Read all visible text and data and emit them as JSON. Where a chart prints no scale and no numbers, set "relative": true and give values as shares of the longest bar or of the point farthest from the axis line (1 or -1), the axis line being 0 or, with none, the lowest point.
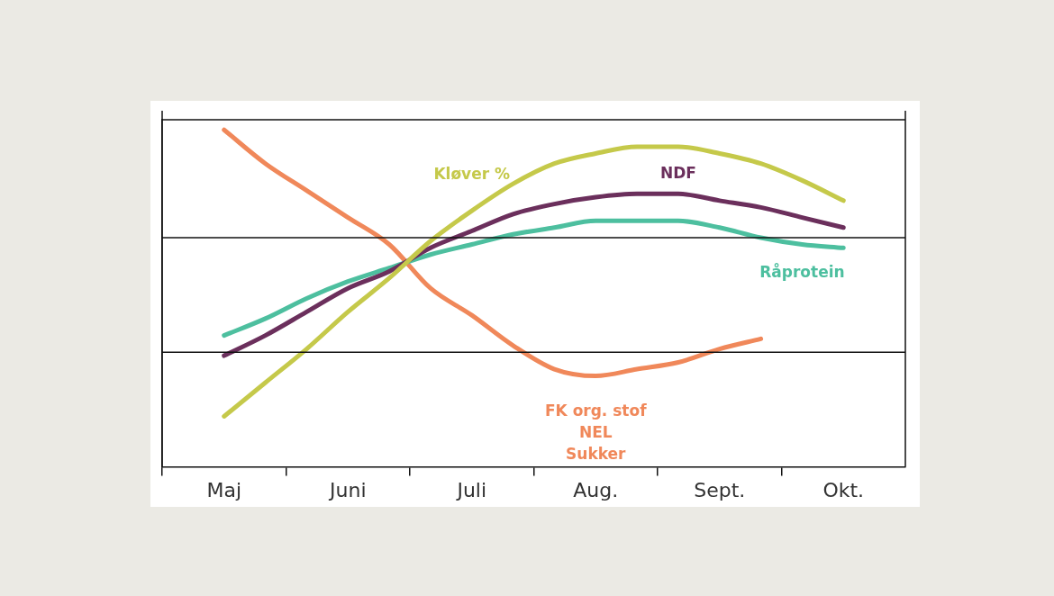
{
  "chart_data": {
    "type": "line",
    "relative": true,
    "ref_lines": [
      {
        "axis": "y",
        "value": 0.34
      },
      {
        "axis": "y",
        "value": 0.68
      },
      {
        "axis": "y",
        "value": 1.03
      }
    ],
    "legend": false,
    "marker": "none",
    "line_style": "solid",
    "categories": [
      null,
      "Maj",
      null,
      null,
      "Juni",
      null,
      null,
      "Juli",
      null,
      null,
      "Aug.",
      null,
      null,
      "Sept.",
      null,
      null,
      "Okt.",
      null
    ],
    "series": [
      {
        "name": "Kløver %",
        "color": "#c5c94a",
        "values": [
          null,
          0.15,
          0.25,
          0.35,
          0.46,
          0.56,
          0.67,
          0.76,
          0.84,
          0.9,
          0.93,
          0.95,
          0.95,
          0.93,
          0.9,
          0.85,
          0.79,
          null
        ]
      },
      {
        "name": "NDF",
        "color": "#6b2f5c",
        "values": [
          null,
          0.33,
          0.39,
          0.46,
          0.53,
          0.58,
          0.65,
          0.7,
          0.75,
          0.78,
          0.8,
          0.81,
          0.81,
          0.79,
          0.77,
          0.74,
          0.71,
          null
        ]
      },
      {
        "name": "Råprotein",
        "color": "#4dbf9f",
        "values": [
          null,
          0.39,
          0.44,
          0.5,
          0.55,
          0.59,
          0.63,
          0.66,
          0.69,
          0.71,
          0.73,
          0.73,
          0.73,
          0.71,
          0.68,
          0.66,
          0.65,
          null
        ]
      },
      {
        "name": "FK org. stof\nNEL\nSukker",
        "color": "#f0885a",
        "values": [
          null,
          1.0,
          0.9,
          0.82,
          0.74,
          0.66,
          0.53,
          0.45,
          0.36,
          0.29,
          0.27,
          0.29,
          0.31,
          0.35,
          0.38,
          null,
          null,
          null
        ]
      }
    ]
  }
}
